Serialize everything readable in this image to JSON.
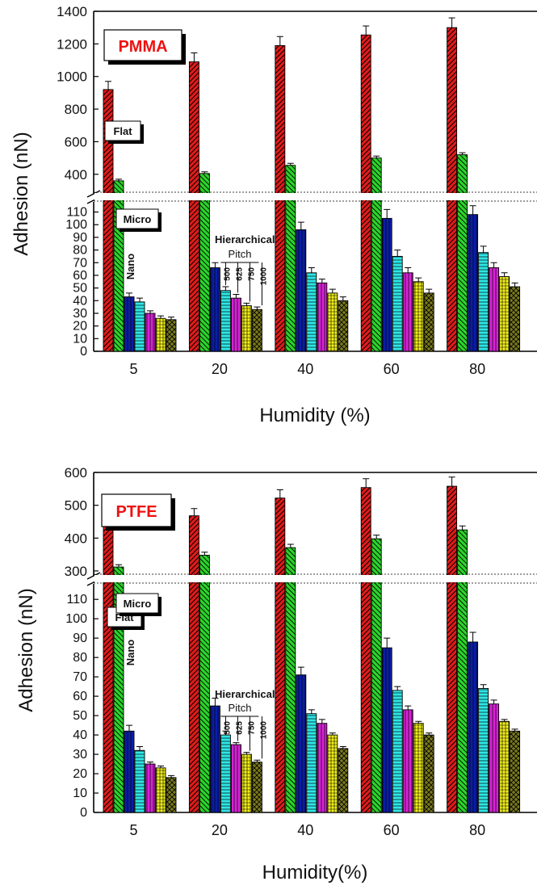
{
  "colors": {
    "flat": "#e01b1b",
    "micro": "#2bd42b",
    "nano": "#0a1ea8",
    "p500": "#2fe6e6",
    "p625": "#d623d6",
    "p750": "#f2f01a",
    "p1000": "#7a7a1c",
    "label_red": "#ee1111"
  },
  "bar_order": [
    "Flat",
    "Micro",
    "Nano",
    "500",
    "625",
    "750",
    "1000"
  ],
  "chart_data": [
    {
      "type": "bar",
      "title": "PMMA",
      "xlabel": "Humidity (%)",
      "ylabel": "Adhesion (nN)",
      "categories": [
        "5",
        "20",
        "40",
        "60",
        "80"
      ],
      "y_axis_break": true,
      "upper_ylim": [
        300,
        1400
      ],
      "upper_ticks": [
        "400",
        "600",
        "800",
        "1000",
        "1200",
        "1400"
      ],
      "lower_ylim": [
        0,
        118
      ],
      "lower_ticks": [
        "0",
        "10",
        "20",
        "30",
        "40",
        "50",
        "60",
        "70",
        "80",
        "90",
        "100",
        "110"
      ],
      "series": [
        {
          "name": "Flat",
          "values": [
            920,
            1090,
            1190,
            1255,
            1300
          ],
          "errors": [
            50,
            55,
            55,
            55,
            60
          ]
        },
        {
          "name": "Micro",
          "values": [
            360,
            405,
            455,
            500,
            520
          ],
          "errors": [
            10,
            10,
            12,
            12,
            12
          ]
        },
        {
          "name": "Nano",
          "values": [
            43,
            66,
            96,
            105,
            108
          ],
          "errors": [
            3,
            4,
            6,
            7,
            7
          ]
        },
        {
          "name": "500",
          "values": [
            39,
            48,
            62,
            75,
            78
          ],
          "errors": [
            3,
            3,
            4,
            5,
            5
          ]
        },
        {
          "name": "625",
          "values": [
            30,
            42,
            54,
            62,
            66
          ],
          "errors": [
            2,
            3,
            3,
            4,
            4
          ]
        },
        {
          "name": "750",
          "values": [
            26,
            36,
            46,
            55,
            59
          ],
          "errors": [
            2,
            2,
            3,
            3,
            3
          ]
        },
        {
          "name": "1000",
          "values": [
            25,
            33,
            40,
            46,
            51
          ],
          "errors": [
            2,
            2,
            3,
            3,
            3
          ]
        }
      ]
    },
    {
      "type": "bar",
      "title": "PTFE",
      "xlabel": "Humidity(%)",
      "ylabel": "Adhesion (nN)",
      "categories": [
        "5",
        "20",
        "40",
        "60",
        "80"
      ],
      "y_axis_break": true,
      "upper_ylim": [
        295,
        600
      ],
      "upper_ticks": [
        "300",
        "400",
        "500",
        "600"
      ],
      "lower_ylim": [
        0,
        118
      ],
      "lower_ticks": [
        "0",
        "10",
        "20",
        "30",
        "40",
        "50",
        "60",
        "70",
        "80",
        "90",
        "100",
        "110"
      ],
      "series": [
        {
          "name": "Flat",
          "values": [
            442,
            468,
            522,
            554,
            558
          ],
          "errors": [
            20,
            22,
            25,
            27,
            28
          ]
        },
        {
          "name": "Micro",
          "values": [
            312,
            348,
            371,
            398,
            425
          ],
          "errors": [
            7,
            9,
            10,
            11,
            12
          ]
        },
        {
          "name": "Nano",
          "values": [
            42,
            55,
            71,
            85,
            88
          ],
          "errors": [
            3,
            4,
            4,
            5,
            5
          ]
        },
        {
          "name": "500",
          "values": [
            32,
            40,
            51,
            63,
            64
          ],
          "errors": [
            2,
            2,
            2,
            2,
            2
          ]
        },
        {
          "name": "625",
          "values": [
            25,
            35,
            46,
            53,
            56
          ],
          "errors": [
            1,
            1,
            2,
            2,
            2
          ]
        },
        {
          "name": "750",
          "values": [
            23,
            30,
            40,
            46,
            47
          ],
          "errors": [
            1,
            1,
            1,
            1,
            1
          ]
        },
        {
          "name": "1000",
          "values": [
            18,
            26,
            33,
            40,
            42
          ],
          "errors": [
            1,
            1,
            1,
            1,
            1
          ]
        }
      ]
    }
  ],
  "annotations": {
    "flat": "Flat",
    "micro": "Micro",
    "nano": "Nano",
    "hierarchical": "Hierarchical",
    "pitch": "Pitch",
    "pitch_values": [
      "500",
      "625",
      "750",
      "1000"
    ]
  }
}
